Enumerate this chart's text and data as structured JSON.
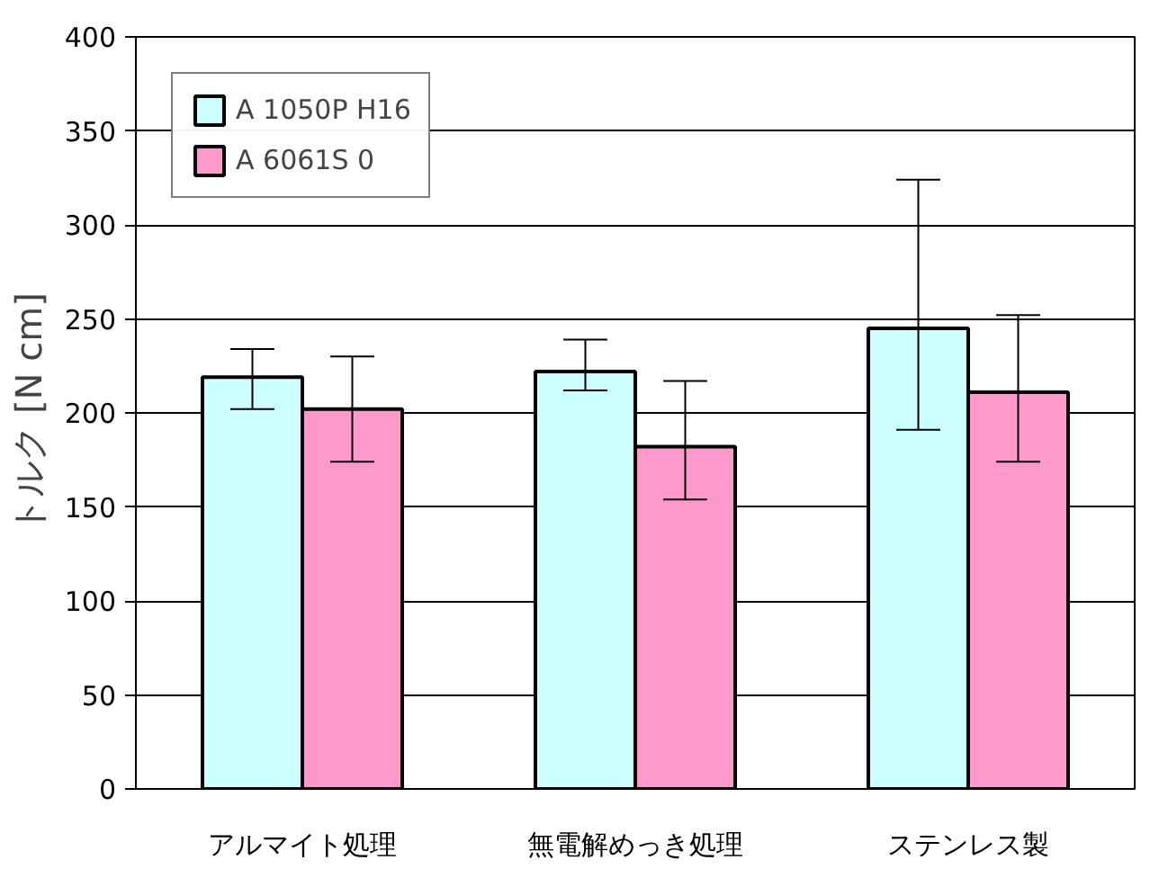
{
  "chart_data": {
    "type": "bar",
    "ylabel": "トルク [N cm]",
    "categories": [
      "アルマイト処理",
      "無電解めっき処理",
      "ステンレス製"
    ],
    "series": [
      {
        "name": "A 1050P H16",
        "color": "#ccffff",
        "values": [
          219,
          222,
          245
        ],
        "errors": [
          [
            202,
            234
          ],
          [
            212,
            239
          ],
          [
            191,
            324
          ]
        ]
      },
      {
        "name": "A 6061S 0",
        "color": "#ff99cc",
        "values": [
          202,
          182,
          211
        ],
        "errors": [
          [
            174,
            230
          ],
          [
            154,
            217
          ],
          [
            174,
            252
          ]
        ]
      }
    ],
    "ylim": [
      0,
      400
    ],
    "yticks": [
      0,
      50,
      100,
      150,
      200,
      250,
      300,
      350,
      400
    ],
    "grid": "y",
    "legend": "top left"
  }
}
